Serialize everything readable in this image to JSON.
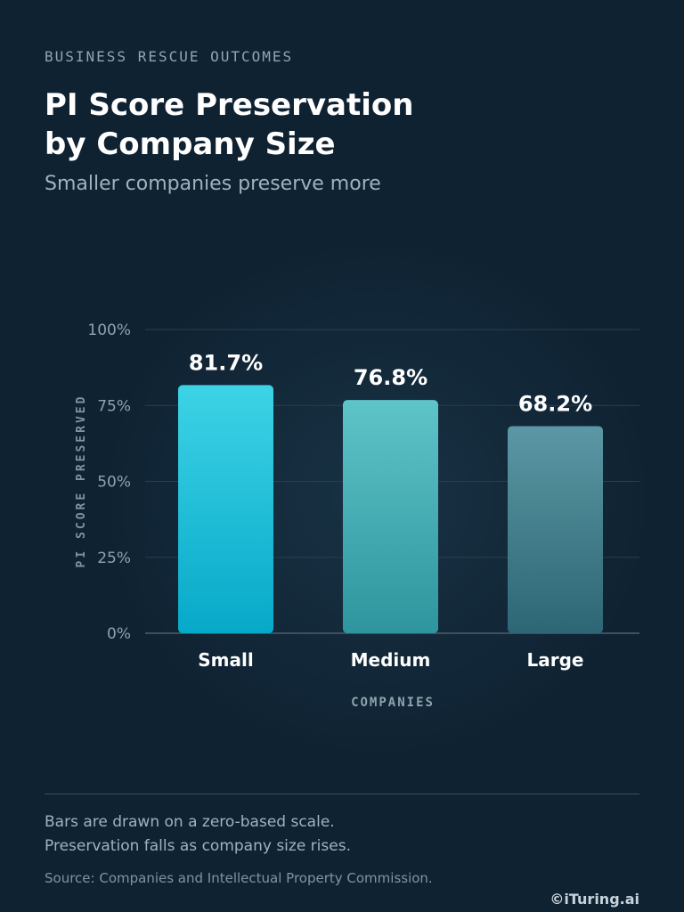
{
  "header": {
    "eyebrow": "BUSINESS RESCUE OUTCOMES",
    "title_line1": "PI Score Preservation",
    "title_line2": "by Company Size",
    "subtitle": "Smaller companies preserve more"
  },
  "footer": {
    "note_line1": "Bars are drawn on a zero-based scale.",
    "note_line2": "Preservation falls as company size rises.",
    "source": "Source: Companies and Intellectual Property Commission.",
    "credit": "©iTuring.ai"
  },
  "chart_data": {
    "type": "bar",
    "categories": [
      "Small",
      "Medium",
      "Large"
    ],
    "values": [
      81.7,
      76.8,
      68.2
    ],
    "value_labels": [
      "81.7%",
      "76.8%",
      "68.2%"
    ],
    "xlabel": "COMPANIES",
    "ylabel": "PI SCORE PRESERVED",
    "ylim": [
      0,
      100
    ],
    "yticks": [
      0,
      25,
      50,
      75,
      100
    ],
    "ytick_labels": [
      "0%",
      "25%",
      "50%",
      "75%",
      "100%"
    ],
    "grid": true,
    "bar_colors": [
      [
        "#3dd3e6",
        "#07a9c9"
      ],
      [
        "#5ec4c8",
        "#2e959e"
      ],
      [
        "#5b97a4",
        "#2d6674"
      ]
    ]
  }
}
